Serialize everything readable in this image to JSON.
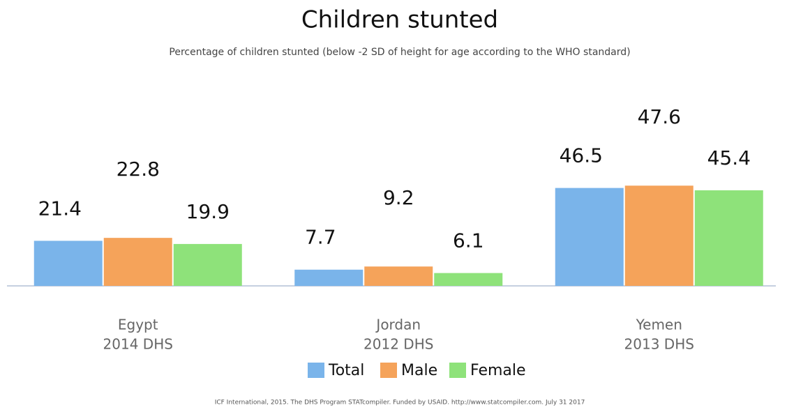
{
  "chart_data": {
    "type": "bar",
    "title": "Children stunted",
    "subtitle": "Percentage of children stunted (below -2 SD of height for age according to the WHO standard)",
    "categories": [
      [
        "Egypt",
        "2014 DHS"
      ],
      [
        "Jordan",
        "2012 DHS"
      ],
      [
        "Yemen",
        "2013 DHS"
      ]
    ],
    "series": [
      {
        "name": "Total",
        "color": "#7ab4ea",
        "values": [
          21.4,
          7.7,
          46.5
        ]
      },
      {
        "name": "Male",
        "color": "#f5a35a",
        "values": [
          22.8,
          9.2,
          47.6
        ]
      },
      {
        "name": "Female",
        "color": "#8ee27a",
        "values": [
          19.9,
          6.1,
          45.4
        ]
      }
    ],
    "ylim": [
      0,
      50
    ],
    "legend": "bottom",
    "source": "ICF International, 2015. The DHS Program STATcompiler. Funded by USAID. http://www.statcompiler.com. July 31 2017"
  }
}
